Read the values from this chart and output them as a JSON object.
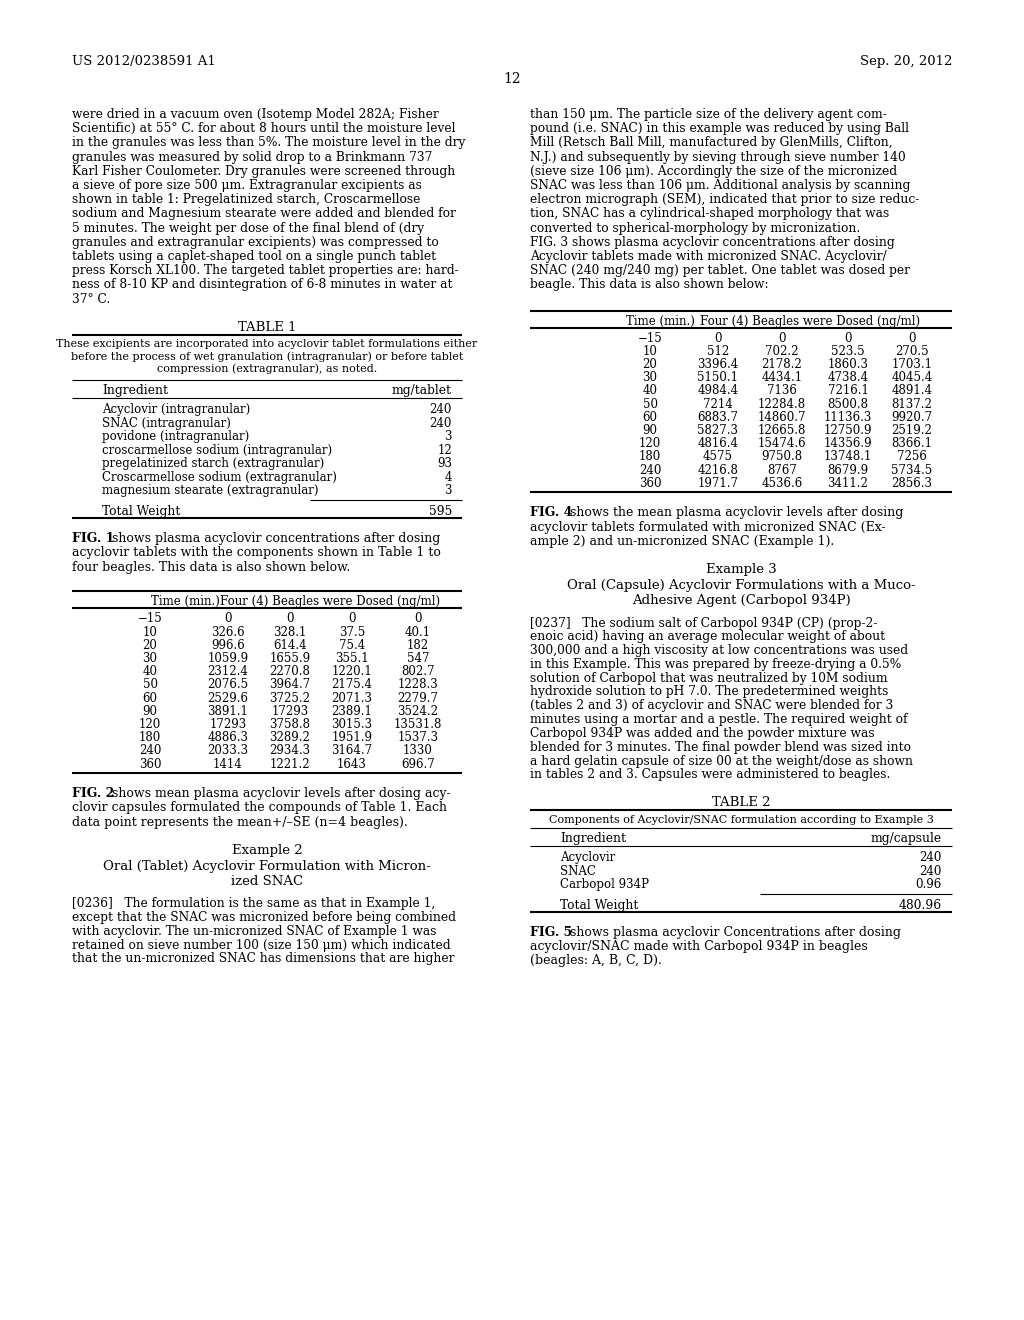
{
  "background_color": "#ffffff",
  "header_left": "US 2012/0238591 A1",
  "header_right": "Sep. 20, 2012",
  "page_number": "12",
  "left_col_text": [
    "were dried in a vacuum oven (Isotemp Model 282A; Fisher",
    "Scientific) at 55° C. for about 8 hours until the moisture level",
    "in the granules was less than 5%. The moisture level in the dry",
    "granules was measured by solid drop to a Brinkmann 737",
    "Karl Fisher Coulometer. Dry granules were screened through",
    "a sieve of pore size 500 μm. Extragranular excipients as",
    "shown in table 1: Pregelatinized starch, Croscarmellose",
    "sodium and Magnesium stearate were added and blended for",
    "5 minutes. The weight per dose of the final blend of (dry",
    "granules and extragranular excipients) was compressed to",
    "tablets using a caplet-shaped tool on a single punch tablet",
    "press Korsch XL100. The targeted tablet properties are: hard-",
    "ness of 8-10 KP and disintegration of 6-8 minutes in water at",
    "37° C."
  ],
  "right_col_text": [
    "than 150 μm. The particle size of the delivery agent com-",
    "pound (i.e. SNAC) in this example was reduced by using Ball",
    "Mill (Retsch Ball Mill, manufactured by GlenMills, Clifton,",
    "N.J.) and subsequently by sieving through sieve number 140",
    "(sieve size 106 μm). Accordingly the size of the micronized",
    "SNAC was less than 106 μm. Additional analysis by scanning",
    "electron micrograph (SEM), indicated that prior to size reduc-",
    "tion, SNAC has a cylindrical-shaped morphology that was",
    "converted to spherical-morphology by micronization.",
    "FIG. 3 shows plasma acyclovir concentrations after dosing",
    "Acyclovir tablets made with micronized SNAC. Acyclovir/",
    "SNAC (240 mg/240 mg) per tablet. One tablet was dosed per",
    "beagle. This data is also shown below:"
  ],
  "table1_title": "TABLE 1",
  "table1_subtitle_lines": [
    "These excipients are incorporated into acyclovir tablet formulations either",
    "before the process of wet granulation (intragranular) or before tablet",
    "compression (extragranular), as noted."
  ],
  "table1_col1": "Ingredient",
  "table1_col2": "mg/tablet",
  "table1_rows": [
    [
      "Acyclovir (intragranular)",
      "240"
    ],
    [
      "SNAC (intragranular)",
      "240"
    ],
    [
      "povidone (intragranular)",
      "3"
    ],
    [
      "croscarmellose sodium (intragranular)",
      "12"
    ],
    [
      "pregelatinized starch (extragranular)",
      "93"
    ],
    [
      "Croscarmellose sodium (extragranular)",
      "4"
    ],
    [
      "magnesium stearate (extragranular)",
      "3"
    ]
  ],
  "table1_total_label": "Total Weight",
  "table1_total_value": "595",
  "fig1_bold": "FIG. 1",
  "fig1_rest": " shows plasma acyclovir concentrations after dosing",
  "fig1_lines": [
    "acyclovir tablets with the components shown in Table 1 to",
    "four beagles. This data is also shown below."
  ],
  "fig2_bold": "FIG. 2",
  "fig2_rest": " shows mean plasma acyclovir levels after dosing acy-",
  "fig2_lines": [
    "clovir capsules formulated the compounds of Table 1. Each",
    "data point represents the mean+/–SE (n=4 beagles)."
  ],
  "table_fig1_header_col1": "Time (min.)",
  "table_fig1_header_col2": "Four (4) Beagles were Dosed (ng/ml)",
  "table_fig1_rows": [
    [
      "−15",
      "0",
      "0",
      "0",
      "0"
    ],
    [
      "10",
      "326.6",
      "328.1",
      "37.5",
      "40.1"
    ],
    [
      "20",
      "996.6",
      "614.4",
      "75.4",
      "182"
    ],
    [
      "30",
      "1059.9",
      "1655.9",
      "355.1",
      "547"
    ],
    [
      "40",
      "2312.4",
      "2270.8",
      "1220.1",
      "802.7"
    ],
    [
      "50",
      "2076.5",
      "3964.7",
      "2175.4",
      "1228.3"
    ],
    [
      "60",
      "2529.6",
      "3725.2",
      "2071.3",
      "2279.7"
    ],
    [
      "90",
      "3891.1",
      "17293",
      "2389.1",
      "3524.2"
    ],
    [
      "120",
      "17293",
      "3758.8",
      "3015.3",
      "13531.8"
    ],
    [
      "180",
      "4886.3",
      "3289.2",
      "1951.9",
      "1537.3"
    ],
    [
      "240",
      "2033.3",
      "2934.3",
      "3164.7",
      "1330"
    ],
    [
      "360",
      "1414",
      "1221.2",
      "1643",
      "696.7"
    ]
  ],
  "right_table_header_col1": "Time (min.)",
  "right_table_header_col2": "Four (4) Beagles were Dosed (ng/ml)",
  "right_table_rows": [
    [
      "−15",
      "0",
      "0",
      "0",
      "0"
    ],
    [
      "10",
      "512",
      "702.2",
      "523.5",
      "270.5"
    ],
    [
      "20",
      "3396.4",
      "2178.2",
      "1860.3",
      "1703.1"
    ],
    [
      "30",
      "5150.1",
      "4434.1",
      "4738.4",
      "4045.4"
    ],
    [
      "40",
      "4984.4",
      "7136",
      "7216.1",
      "4891.4"
    ],
    [
      "50",
      "7214",
      "12284.8",
      "8500.8",
      "8137.2"
    ],
    [
      "60",
      "6883.7",
      "14860.7",
      "11136.3",
      "9920.7"
    ],
    [
      "90",
      "5827.3",
      "12665.8",
      "12750.9",
      "2519.2"
    ],
    [
      "120",
      "4816.4",
      "15474.6",
      "14356.9",
      "8366.1"
    ],
    [
      "180",
      "4575",
      "9750.8",
      "13748.1",
      "7256"
    ],
    [
      "240",
      "4216.8",
      "8767",
      "8679.9",
      "5734.5"
    ],
    [
      "360",
      "1971.7",
      "4536.6",
      "3411.2",
      "2856.3"
    ]
  ],
  "fig4_bold": "FIG. 4",
  "fig4_rest": " shows the mean plasma acyclovir levels after dosing",
  "fig4_lines": [
    "acyclovir tablets formulated with micronized SNAC (Ex-",
    "ample 2) and un-micronized SNAC (Example 1)."
  ],
  "example2_title": "Example 2",
  "example2_subtitle_lines": [
    "Oral (Tablet) Acyclovir Formulation with Micron-",
    "ized SNAC"
  ],
  "example2_text": [
    "[0236]   The formulation is the same as that in Example 1,",
    "except that the SNAC was micronized before being combined",
    "with acyclovir. The un-micronized SNAC of Example 1 was",
    "retained on sieve number 100 (size 150 μm) which indicated",
    "that the un-micronized SNAC has dimensions that are higher"
  ],
  "example3_title": "Example 3",
  "example3_subtitle_lines": [
    "Oral (Capsule) Acyclovir Formulations with a Muco-",
    "Adhesive Agent (Carbopol 934P)"
  ],
  "example3_text": [
    "[0237]   The sodium salt of Carbopol 934P (CP) (prop-2-",
    "enoic acid) having an average molecular weight of about",
    "300,000 and a high viscosity at low concentrations was used",
    "in this Example. This was prepared by freeze-drying a 0.5%",
    "solution of Carbopol that was neutralized by 10M sodium",
    "hydroxide solution to pH 7.0. The predetermined weights",
    "(tables 2 and 3) of acyclovir and SNAC were blended for 3",
    "minutes using a mortar and a pestle. The required weight of",
    "Carbopol 934P was added and the powder mixture was",
    "blended for 3 minutes. The final powder blend was sized into",
    "a hard gelatin capsule of size 00 at the weight/dose as shown",
    "in tables 2 and 3. Capsules were administered to beagles."
  ],
  "table2_title": "TABLE 2",
  "table2_subtitle": "Components of Acyclovir/SNAC formulation according to Example 3",
  "table2_col1": "Ingredient",
  "table2_col2": "mg/capsule",
  "table2_rows": [
    [
      "Acyclovir",
      "240"
    ],
    [
      "SNAC",
      "240"
    ],
    [
      "Carbopol 934P",
      "0.96"
    ]
  ],
  "table2_total_label": "Total Weight",
  "table2_total_value": "480.96",
  "fig5_bold": "FIG. 5",
  "fig5_rest": " shows plasma acyclovir Concentrations after dosing",
  "fig5_lines": [
    "acyclovir/SNAC made with Carbopol 934P in beagles",
    "(beagles: A, B, C, D)."
  ]
}
